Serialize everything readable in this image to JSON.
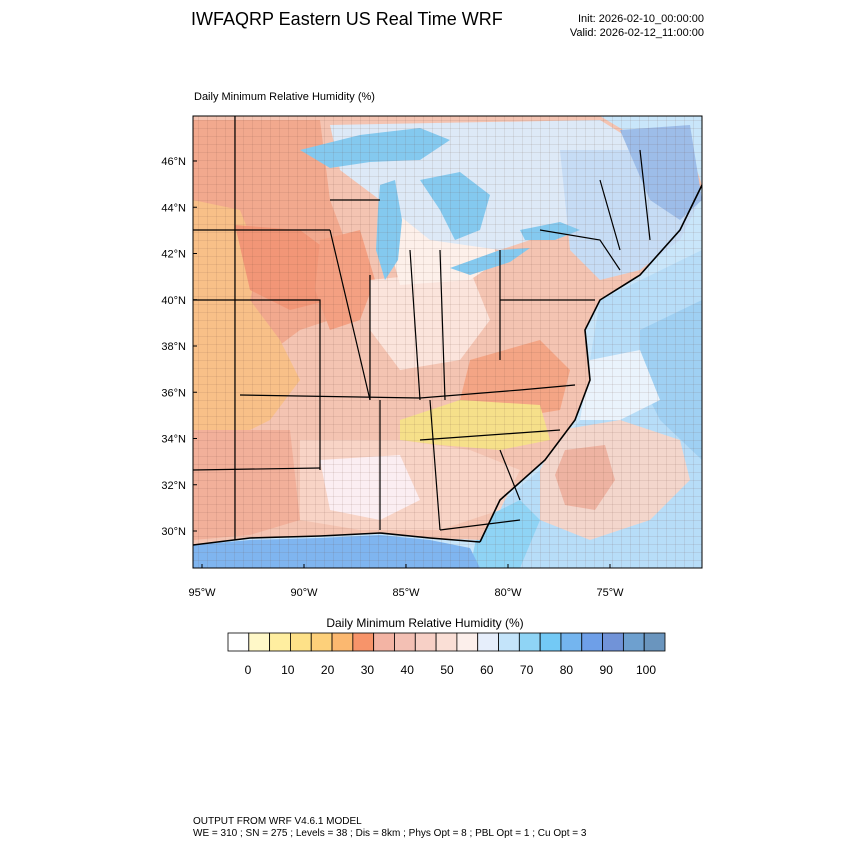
{
  "header": {
    "title": "IWFAQRP Eastern US Real Time WRF",
    "init": "Init: 2026-02-10_00:00:00",
    "valid": "Valid: 2026-02-12_11:00:00"
  },
  "field": {
    "title": "Daily Minimum Relative Humidity   (%)"
  },
  "map": {
    "lat_labels": [
      "46°N",
      "44°N",
      "42°N",
      "40°N",
      "38°N",
      "36°N",
      "34°N",
      "32°N",
      "30°N"
    ],
    "lon_labels": [
      "95°W",
      "90°W",
      "85°W",
      "80°W",
      "75°W"
    ],
    "lat_values": [
      46,
      44,
      42,
      40,
      38,
      36,
      34,
      32,
      30
    ],
    "lon_values": [
      -95,
      -90,
      -85,
      -80,
      -75
    ],
    "colors": {
      "dry": "#f4a582",
      "very_dry": "#f8c08a",
      "driest": "#f7e38a",
      "moist": "#fbe1d4",
      "neutral": "#fdf1ec",
      "wet": "#9fd6f2",
      "very_wet": "#6fb7ec",
      "water": "#7fb5f0"
    }
  },
  "colorbar": {
    "title": "Daily Minimum Relative Humidity  (%)",
    "colors": [
      "#ffffff",
      "#fff8c8",
      "#ffeea0",
      "#fee188",
      "#fdd07a",
      "#fbb870",
      "#f7946a",
      "#f3b4a4",
      "#f3c0b4",
      "#f7d0c6",
      "#fadfd6",
      "#fcefeb",
      "#e6eefb",
      "#c4e4fa",
      "#8fd4f5",
      "#73c9f5",
      "#74b5ef",
      "#6e9fe8",
      "#7193d8",
      "#6ea0cf",
      "#6a95be"
    ],
    "tick_labels": [
      "0",
      "10",
      "20",
      "30",
      "40",
      "50",
      "60",
      "70",
      "80",
      "90",
      "100"
    ]
  },
  "footer": {
    "model": "OUTPUT FROM WRF V4.6.1 MODEL",
    "params": "WE = 310 ; SN = 275 ; Levels = 38 ; Dis = 8km ; Phys Opt = 8 ; PBL Opt = 1 ; Cu Opt = 3"
  }
}
